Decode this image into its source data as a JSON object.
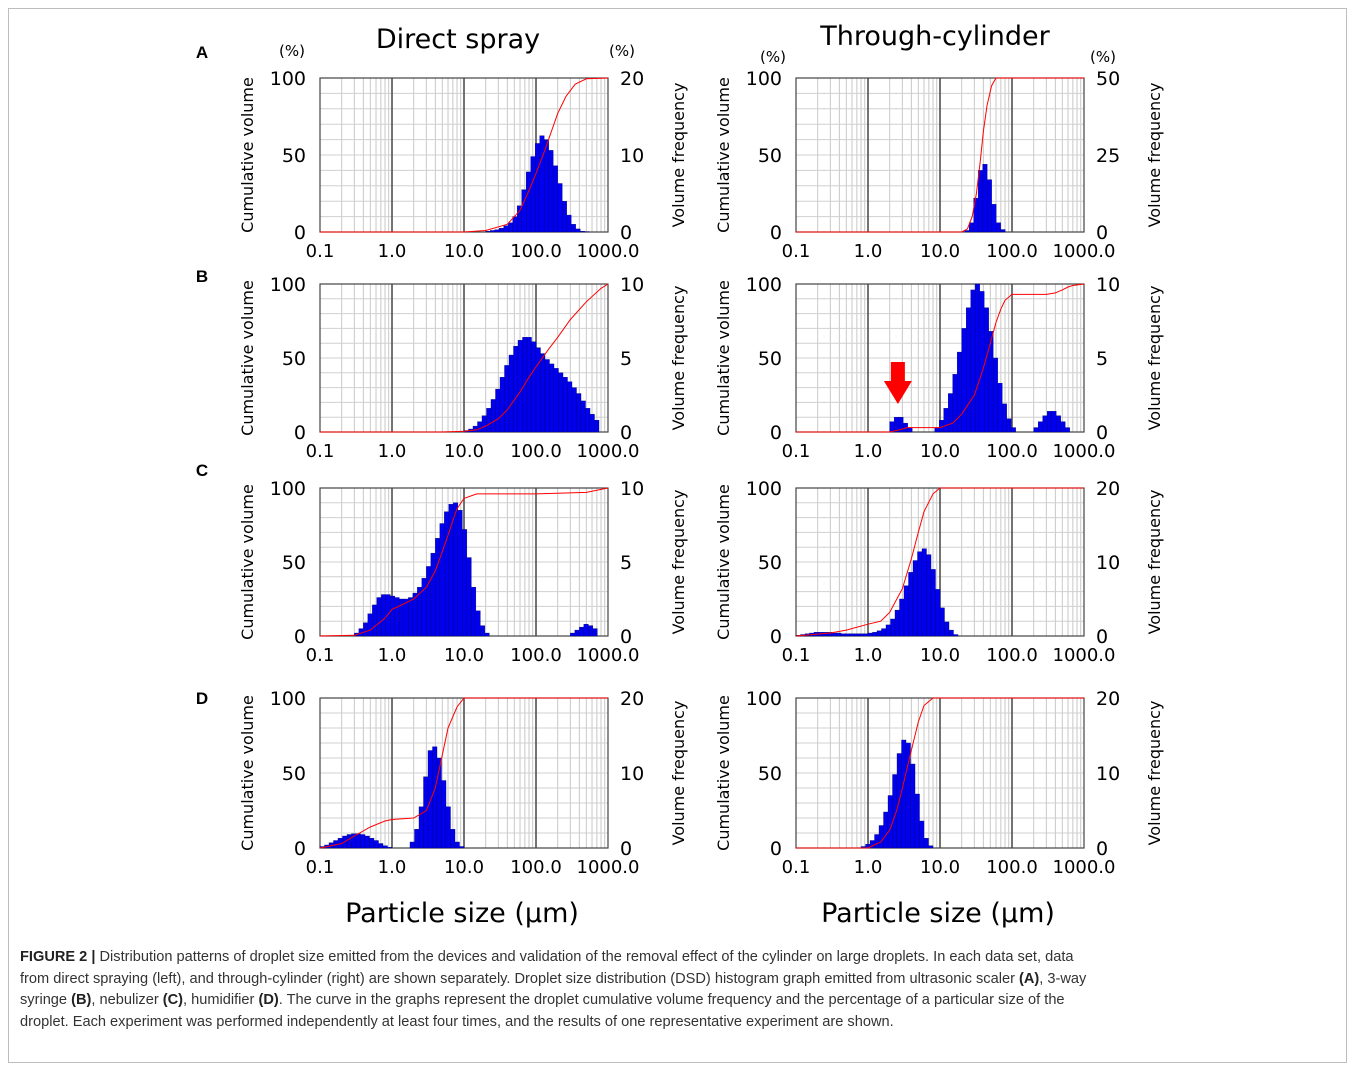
{
  "titles": {
    "left": "Direct spray",
    "right": "Through-cylinder",
    "units_left": "(%)",
    "units_right": "(%)"
  },
  "x_axis_label": "Particle size (μm)",
  "y_label_left": "Cumulative volume",
  "y_label_right": "Volume frequency",
  "arrow_color": "#ff0000",
  "bar_color": "#0000ee",
  "curve_color": "#ff0000",
  "chart_data": [
    {
      "panel": "A",
      "column": "Direct spray",
      "type": "bar",
      "xscale": "log",
      "xlim": [
        0.1,
        1000
      ],
      "xticks": [
        "0.1",
        "1.0",
        "10.0",
        "100.0",
        "1000.0"
      ],
      "ylabel": "Cumulative volume",
      "y2label": "Volume frequency",
      "ylim": [
        0,
        100
      ],
      "yticks": [
        "0",
        "50",
        "100"
      ],
      "y2lim": [
        0,
        20
      ],
      "y2ticks": [
        "0",
        "10",
        "20"
      ],
      "bins_start": 20,
      "bins_per_decade": 16,
      "frequency": [
        0.1,
        0.2,
        0.3,
        0.5,
        0.8,
        1.2,
        2.0,
        3.4,
        5.5,
        7.8,
        9.8,
        11.5,
        12.5,
        12.0,
        10.6,
        8.6,
        6.3,
        4.0,
        2.2,
        1.0,
        0.4,
        0.1,
        0.05
      ],
      "cumulative": {
        "x": [
          0.1,
          10,
          20,
          40,
          60,
          80,
          100,
          130,
          160,
          200,
          260,
          350,
          500,
          1000
        ],
        "y": [
          0,
          0,
          1,
          5,
          14,
          27,
          38,
          52,
          64,
          77,
          88,
          96,
          99.5,
          100
        ]
      }
    },
    {
      "panel": "A",
      "column": "Through-cylinder",
      "type": "bar",
      "xscale": "log",
      "xlim": [
        0.1,
        1000
      ],
      "xticks": [
        "0.1",
        "1.0",
        "10.0",
        "100.0",
        "1000.0"
      ],
      "ylabel": "Cumulative volume",
      "y2label": "Volume frequency",
      "ylim": [
        0,
        100
      ],
      "yticks": [
        "0",
        "50",
        "100"
      ],
      "y2lim": [
        0,
        50
      ],
      "y2ticks": [
        "0",
        "25",
        "50"
      ],
      "bins_start": 22,
      "bins_per_decade": 16,
      "frequency": [
        0.5,
        3,
        11,
        20,
        22,
        17,
        9,
        3,
        0.8
      ],
      "cumulative": {
        "x": [
          0.1,
          20,
          24,
          28,
          32,
          36,
          40,
          45,
          52,
          60,
          1000
        ],
        "y": [
          0,
          0,
          2,
          10,
          25,
          45,
          65,
          82,
          95,
          100,
          100
        ]
      }
    },
    {
      "panel": "B",
      "column": "Direct spray",
      "type": "bar",
      "xscale": "log",
      "xlim": [
        0.1,
        1000
      ],
      "xticks": [
        "0.1",
        "1.0",
        "10.0",
        "100.0",
        "1000.0"
      ],
      "ylabel": "Cumulative volume",
      "y2label": "Volume frequency",
      "ylim": [
        0,
        100
      ],
      "yticks": [
        "0",
        "50",
        "100"
      ],
      "y2lim": [
        0,
        10
      ],
      "y2ticks": [
        "0",
        "5",
        "10"
      ],
      "bins_start": 10,
      "bins_per_decade": 16,
      "frequency": [
        0.1,
        0.2,
        0.4,
        0.7,
        1.1,
        1.6,
        2.2,
        2.9,
        3.7,
        4.5,
        5.2,
        5.8,
        6.2,
        6.4,
        6.4,
        6.1,
        5.7,
        5.3,
        4.9,
        4.6,
        4.3,
        4.0,
        3.7,
        3.4,
        3.0,
        2.6,
        2.1,
        1.6,
        1.2,
        0.8
      ],
      "cumulative": {
        "x": [
          0.1,
          5,
          10,
          15,
          20,
          30,
          40,
          60,
          80,
          100,
          150,
          200,
          300,
          500,
          800,
          1000
        ],
        "y": [
          0,
          0,
          0.5,
          1.5,
          4,
          9,
          15,
          27,
          37,
          44,
          56,
          64,
          76,
          88,
          97,
          100
        ]
      }
    },
    {
      "panel": "B",
      "column": "Through-cylinder",
      "type": "bar",
      "xscale": "log",
      "xlim": [
        0.1,
        1000
      ],
      "xticks": [
        "0.1",
        "1.0",
        "10.0",
        "100.0",
        "1000.0"
      ],
      "ylabel": "Cumulative volume",
      "y2label": "Volume frequency",
      "ylim": [
        0,
        100
      ],
      "yticks": [
        "0",
        "50",
        "100"
      ],
      "y2lim": [
        0,
        10
      ],
      "y2ticks": [
        "0",
        "5",
        "10"
      ],
      "bins_start": 2.0,
      "bins_per_decade": 16,
      "frequency": [
        0.7,
        1.0,
        1.0,
        0.6,
        0.3,
        0,
        0,
        0,
        0,
        0,
        0.3,
        0.8,
        1.6,
        2.6,
        3.9,
        5.4,
        7.0,
        8.4,
        9.6,
        10.0,
        9.5,
        8.4,
        6.8,
        5.0,
        3.3,
        1.9,
        0.9,
        0.3,
        0,
        0,
        0,
        0,
        0.3,
        0.7,
        1.1,
        1.4,
        1.4,
        1.1,
        0.7,
        0.3
      ],
      "annotation": "red arrow marking the small peak near 2–3 μm",
      "cumulative": {
        "x": [
          0.1,
          2,
          2.5,
          3,
          3.5,
          5,
          10,
          15,
          20,
          30,
          40,
          50,
          60,
          70,
          80,
          100,
          200,
          300,
          400,
          500,
          600,
          700,
          1000
        ],
        "y": [
          0,
          0,
          1,
          2,
          3,
          3,
          3,
          6,
          12,
          25,
          43,
          60,
          74,
          83,
          89,
          93,
          93,
          93,
          94,
          96,
          98,
          99,
          100
        ]
      }
    },
    {
      "panel": "C",
      "column": "Direct spray",
      "type": "bar",
      "xscale": "log",
      "xlim": [
        0.1,
        1000
      ],
      "xticks": [
        "0.1",
        "1.0",
        "10.0",
        "100.0",
        "1000.0"
      ],
      "ylabel": "Cumulative volume",
      "y2label": "Volume frequency",
      "ylim": [
        0,
        100
      ],
      "yticks": [
        "0",
        "50",
        "100"
      ],
      "y2lim": [
        0,
        10
      ],
      "y2ticks": [
        "0",
        "5",
        "10"
      ],
      "bins_start": 0.3,
      "bins_per_decade": 16,
      "frequency": [
        0.2,
        0.5,
        0.9,
        1.5,
        2.1,
        2.6,
        2.8,
        2.8,
        2.7,
        2.6,
        2.5,
        2.5,
        2.6,
        2.9,
        3.3,
        3.9,
        4.7,
        5.6,
        6.6,
        7.6,
        8.4,
        8.9,
        9.0,
        8.5,
        7.2,
        5.3,
        3.3,
        1.7,
        0.7,
        0.2
      ],
      "secondary_peak": {
        "bins_start": 300,
        "frequency": [
          0.2,
          0.4,
          0.6,
          0.8,
          0.7,
          0.5
        ]
      },
      "cumulative": {
        "x": [
          0.1,
          0.3,
          0.5,
          0.8,
          1,
          1.5,
          2,
          3,
          4,
          5,
          6,
          7,
          8,
          10,
          15,
          30,
          100,
          500,
          1000
        ],
        "y": [
          0,
          0.5,
          4,
          12,
          18,
          22,
          25,
          33,
          44,
          57,
          68,
          78,
          86,
          93,
          96,
          96,
          96,
          97,
          100
        ]
      }
    },
    {
      "panel": "C",
      "column": "Through-cylinder",
      "type": "bar",
      "xscale": "log",
      "xlim": [
        0.1,
        1000
      ],
      "xticks": [
        "0.1",
        "1.0",
        "10.0",
        "100.0",
        "1000.0"
      ],
      "ylabel": "Cumulative volume",
      "y2label": "Volume frequency",
      "ylim": [
        0,
        100
      ],
      "yticks": [
        "0",
        "50",
        "100"
      ],
      "y2lim": [
        0,
        20
      ],
      "y2ticks": [
        "0",
        "10",
        "20"
      ],
      "bins_start": 0.1,
      "bins_per_decade": 16,
      "frequency": [
        0.1,
        0.2,
        0.3,
        0.4,
        0.5,
        0.5,
        0.5,
        0.5,
        0.4,
        0.4,
        0.3,
        0.3,
        0.3,
        0.3,
        0.3,
        0.3,
        0.4,
        0.5,
        0.7,
        1.0,
        1.5,
        2.3,
        3.5,
        5.0,
        6.8,
        8.6,
        10.2,
        11.4,
        11.8,
        11.0,
        9.0,
        6.3,
        3.8,
        1.9,
        0.8,
        0.2
      ],
      "cumulative": {
        "x": [
          0.1,
          0.3,
          0.5,
          1,
          1.5,
          2,
          3,
          4,
          5,
          6,
          8,
          10,
          1000
        ],
        "y": [
          0,
          2,
          4,
          8,
          10,
          16,
          32,
          52,
          70,
          84,
          96,
          100,
          100
        ]
      }
    },
    {
      "panel": "D",
      "column": "Direct spray",
      "type": "bar",
      "xscale": "log",
      "xlim": [
        0.1,
        1000
      ],
      "xticks": [
        "0.1",
        "1.0",
        "10.0",
        "100.0",
        "1000.0"
      ],
      "ylabel": "Cumulative volume",
      "y2label": "Volume frequency",
      "ylim": [
        0,
        100
      ],
      "yticks": [
        "0",
        "50",
        "100"
      ],
      "y2lim": [
        0,
        20
      ],
      "y2ticks": [
        "0",
        "10",
        "20"
      ],
      "bins_start": 0.1,
      "bins_per_decade": 16,
      "frequency": [
        0.2,
        0.4,
        0.7,
        1.0,
        1.3,
        1.6,
        1.8,
        1.9,
        1.9,
        1.8,
        1.6,
        1.3,
        1.0,
        0.6,
        0.3,
        0.1,
        0,
        0,
        0,
        0,
        0.8,
        2.5,
        5.5,
        9.5,
        13.0,
        13.5,
        12.0,
        9.0,
        5.5,
        2.5,
        0.8,
        0.2
      ],
      "cumulative": {
        "x": [
          0.1,
          0.2,
          0.3,
          0.5,
          0.8,
          1,
          2,
          3,
          4,
          5,
          6,
          8,
          10,
          1000
        ],
        "y": [
          0,
          3,
          8,
          14,
          18,
          19,
          20,
          25,
          40,
          62,
          80,
          94,
          100,
          100
        ]
      }
    },
    {
      "panel": "D",
      "column": "Through-cylinder",
      "type": "bar",
      "xscale": "log",
      "xlim": [
        0.1,
        1000
      ],
      "xticks": [
        "0.1",
        "1.0",
        "10.0",
        "100.0",
        "1000.0"
      ],
      "ylabel": "Cumulative volume",
      "y2label": "Volume frequency",
      "ylim": [
        0,
        100
      ],
      "yticks": [
        "0",
        "50",
        "100"
      ],
      "y2lim": [
        0,
        20
      ],
      "y2ticks": [
        "0",
        "10",
        "20"
      ],
      "bins_start": 0.8,
      "bins_per_decade": 16,
      "frequency": [
        0.2,
        0.5,
        1.0,
        1.8,
        3.0,
        4.8,
        7.0,
        9.8,
        12.6,
        14.4,
        14.0,
        11.2,
        7.2,
        3.6,
        1.3,
        0.3
      ],
      "cumulative": {
        "x": [
          0.1,
          1,
          1.5,
          2,
          2.5,
          3,
          4,
          5,
          6,
          8,
          1000
        ],
        "y": [
          0,
          0,
          4,
          12,
          25,
          40,
          65,
          84,
          95,
          100,
          100
        ]
      }
    }
  ],
  "caption": {
    "label": "FIGURE 2 |",
    "lines": [
      [
        {
          "t": "Distribution patterns of droplet size emitted from the devices and validation of the removal effect of the cylinder on large droplets. In each data set, data"
        }
      ],
      [
        {
          "t": "from direct spraying (left), and through-cylinder (right) are shown separately. Droplet size distribution (DSD) histogram graph emitted from ultrasonic scaler "
        },
        {
          "t": "(A)",
          "b": true
        },
        {
          "t": ", 3-way"
        }
      ],
      [
        {
          "t": "syringe "
        },
        {
          "t": "(B)",
          "b": true
        },
        {
          "t": ", nebulizer "
        },
        {
          "t": "(C)",
          "b": true
        },
        {
          "t": ", humidifier "
        },
        {
          "t": "(D)",
          "b": true
        },
        {
          "t": ". The curve in the graphs represent the droplet cumulative volume frequency and the percentage of a particular size of the"
        }
      ],
      [
        {
          "t": "droplet. Each experiment was performed independently at least four times, and the results of one representative experiment are shown."
        }
      ]
    ]
  }
}
